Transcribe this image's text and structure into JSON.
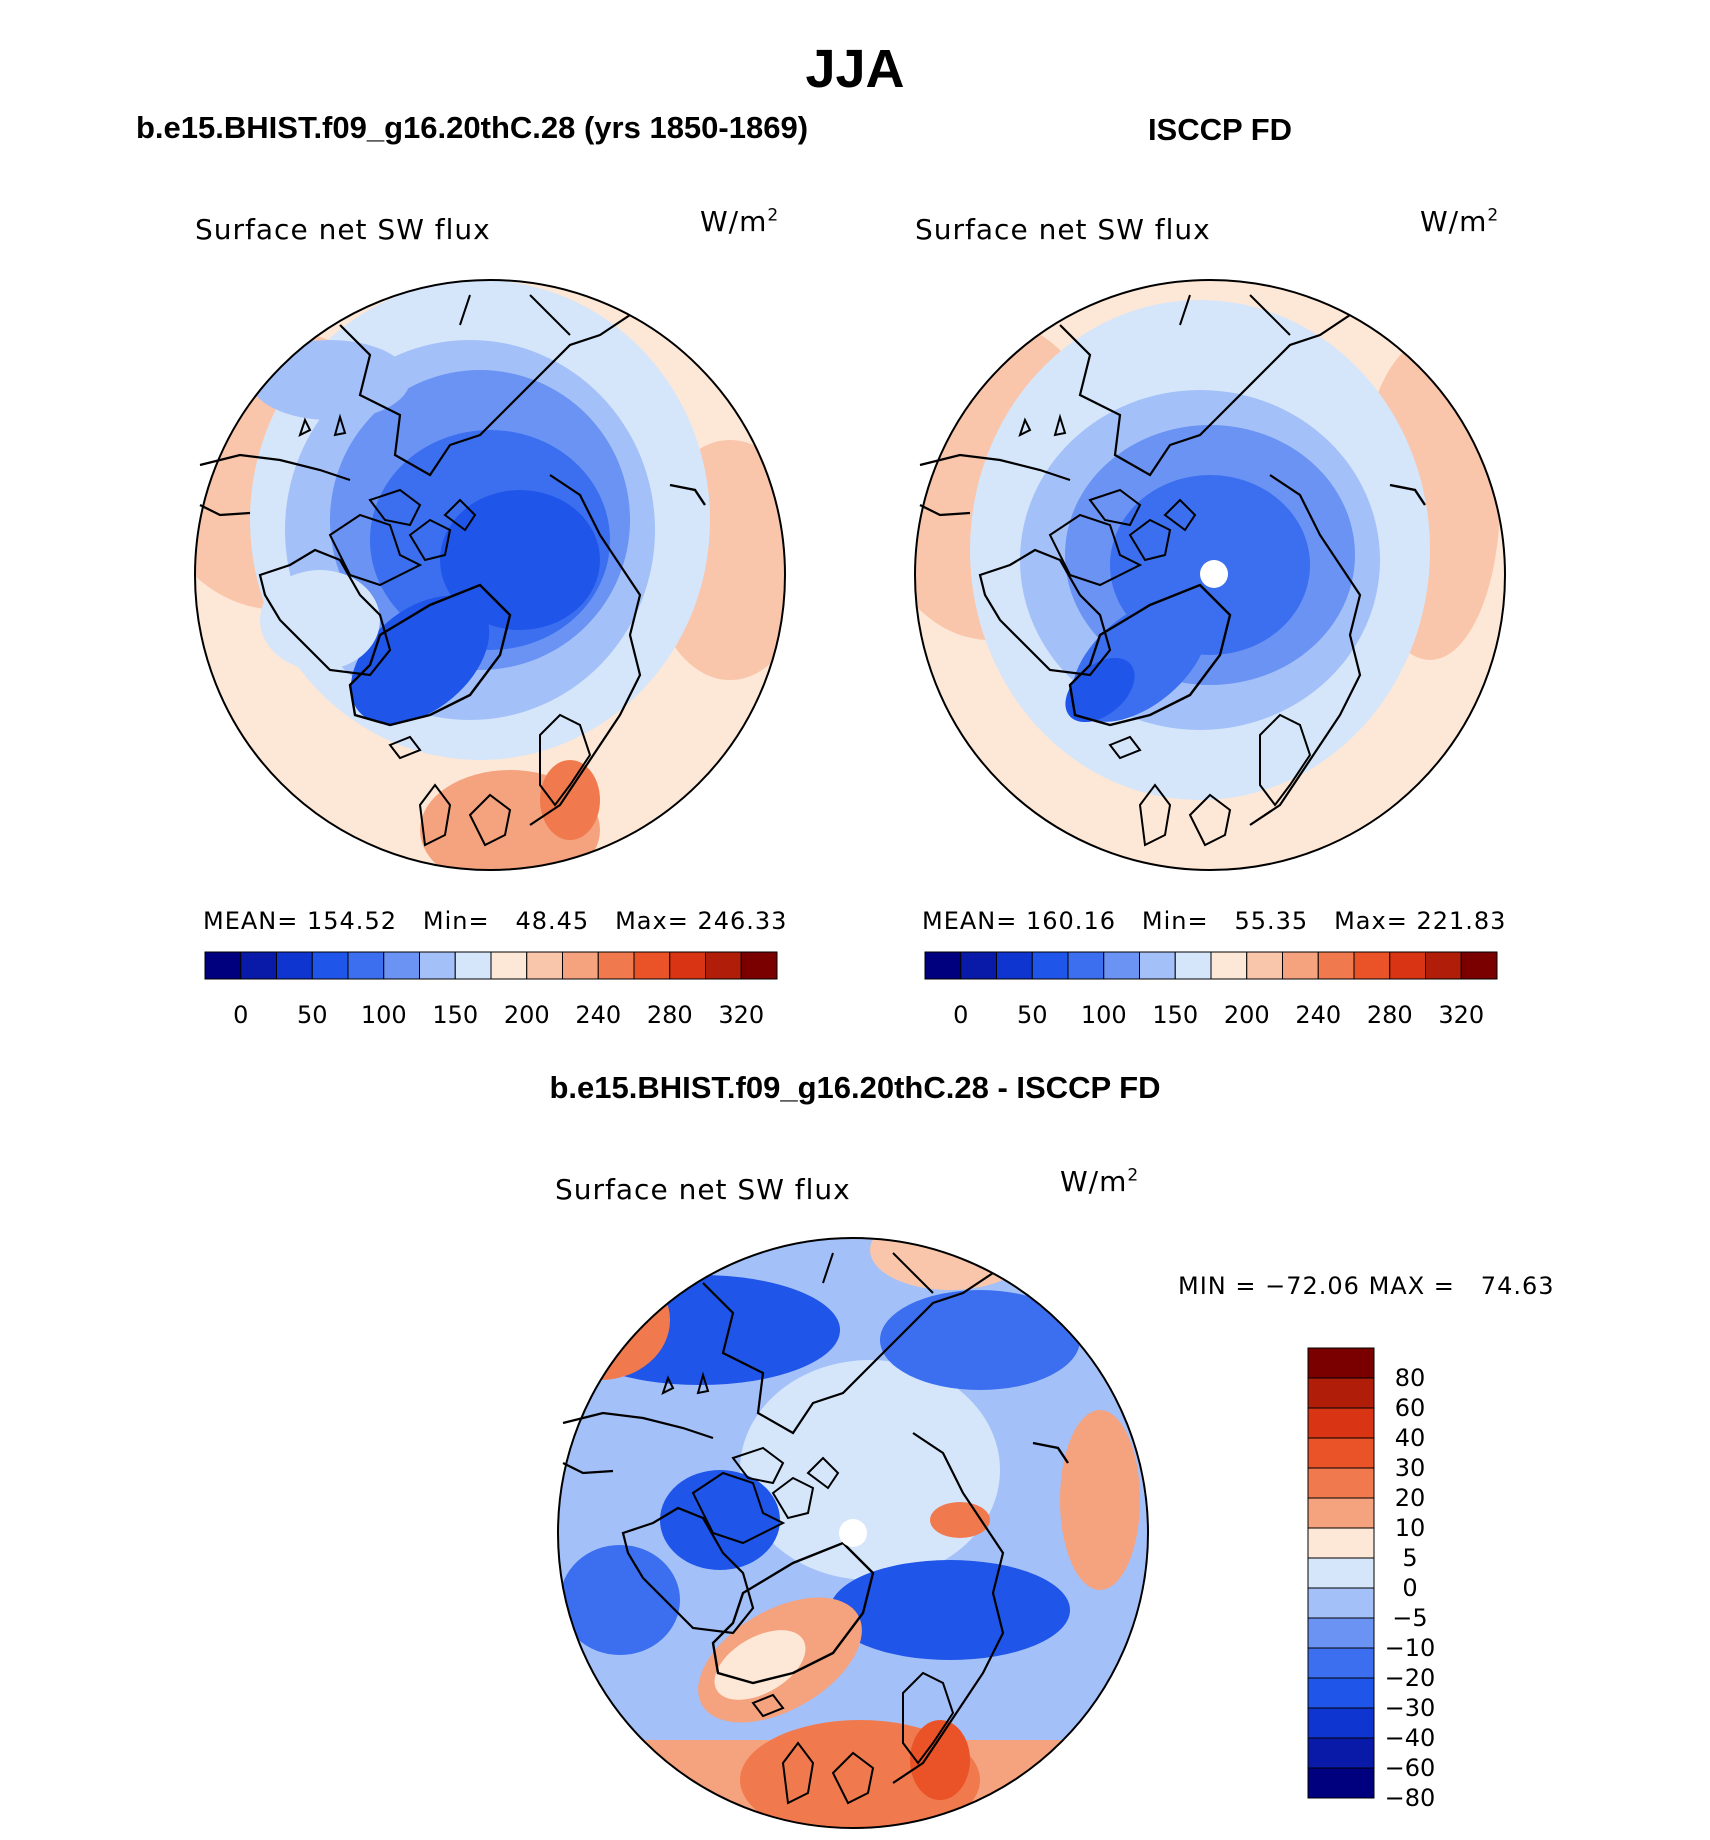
{
  "title": "JJA",
  "panels": {
    "model": {
      "header": "b.e15.BHIST.f09_g16.20thC.28 (yrs 1850-1869)",
      "variable_label": "Surface net SW flux",
      "unit_base": "W/m",
      "unit_exp": "2",
      "stats": {
        "mean_label": "MEAN=",
        "mean": "154.52",
        "min_label": "Min=",
        "min": "48.45",
        "max_label": "Max=",
        "max": "246.33"
      }
    },
    "obs": {
      "header": "ISCCP FD",
      "variable_label": "Surface net SW flux",
      "unit_base": "W/m",
      "unit_exp": "2",
      "stats": {
        "mean_label": "MEAN=",
        "mean": "160.16",
        "min_label": "Min=",
        "min": "55.35",
        "max_label": "Max=",
        "max": "221.83"
      }
    },
    "diff": {
      "header": "b.e15.BHIST.f09_g16.20thC.28 - ISCCP FD",
      "variable_label": "Surface net SW flux",
      "unit_base": "W/m",
      "unit_exp": "2",
      "stats": {
        "min_label": "MIN =",
        "min": "−72.06",
        "max_label": "MAX =",
        "max": "74.63"
      }
    }
  },
  "colorbar_horizontal": {
    "colors": [
      "#00007f",
      "#0a1aa8",
      "#0f35d0",
      "#1f55e8",
      "#3b6ff0",
      "#6a93f3",
      "#a4c0f8",
      "#d5e6fb",
      "#fde7d6",
      "#f9c6ab",
      "#f5a27e",
      "#f07a4e",
      "#ea5228",
      "#d93414",
      "#b01e0a",
      "#7a0000"
    ],
    "tick_labels": [
      "0",
      "50",
      "100",
      "150",
      "200",
      "240",
      "280",
      "320"
    ]
  },
  "colorbar_vertical": {
    "colors": [
      "#7a0000",
      "#b01e0a",
      "#d93414",
      "#ea5228",
      "#f07a4e",
      "#f5a27e",
      "#fde7d6",
      "#d5e6fb",
      "#a4c0f8",
      "#6a93f3",
      "#3b6ff0",
      "#1f55e8",
      "#0f35d0",
      "#0a1aa8",
      "#00007f"
    ],
    "tick_labels": [
      "80",
      "60",
      "40",
      "30",
      "20",
      "10",
      "5",
      "0",
      "−5",
      "−10",
      "−20",
      "−30",
      "−40",
      "−60",
      "−80"
    ]
  },
  "chart_data": [
    {
      "type": "heatmap",
      "projection": "north polar stereographic",
      "title": "Surface net SW flux",
      "subtitle": "b.e15.BHIST.f09_g16.20thC.28 (yrs 1850-1869)",
      "units": "W/m2",
      "contour_levels": [
        0,
        25,
        50,
        75,
        100,
        125,
        150,
        175,
        200,
        220,
        240,
        260,
        280,
        300,
        320
      ],
      "mean": 154.52,
      "min": 48.45,
      "max": 246.33
    },
    {
      "type": "heatmap",
      "projection": "north polar stereographic",
      "title": "Surface net SW flux",
      "subtitle": "ISCCP FD",
      "units": "W/m2",
      "contour_levels": [
        0,
        25,
        50,
        75,
        100,
        125,
        150,
        175,
        200,
        220,
        240,
        260,
        280,
        300,
        320
      ],
      "mean": 160.16,
      "min": 55.35,
      "max": 221.83
    },
    {
      "type": "heatmap",
      "projection": "north polar stereographic",
      "title": "Surface net SW flux",
      "subtitle": "b.e15.BHIST.f09_g16.20thC.28 - ISCCP FD",
      "units": "W/m2",
      "contour_levels": [
        -80,
        -60,
        -40,
        -30,
        -20,
        -10,
        -5,
        0,
        5,
        10,
        20,
        30,
        40,
        60,
        80
      ],
      "min": -72.06,
      "max": 74.63
    }
  ]
}
